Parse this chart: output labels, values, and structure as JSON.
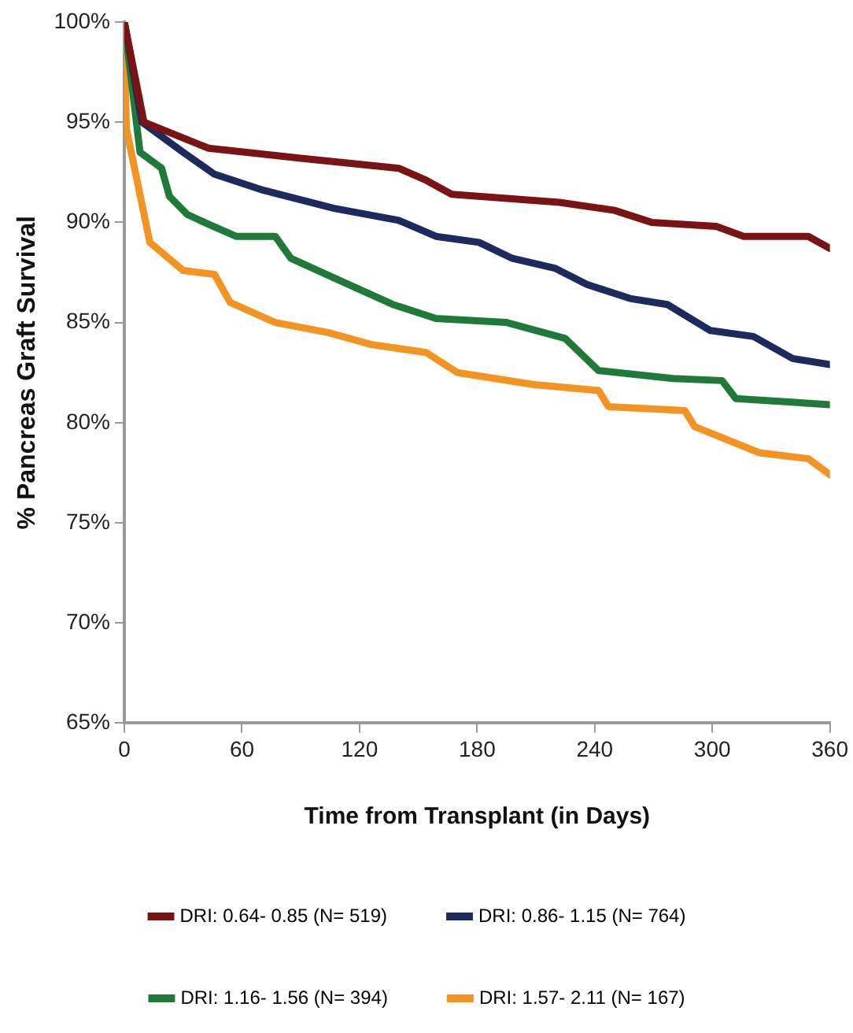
{
  "chart_data": {
    "type": "line",
    "xlabel": "Time from Transplant (in Days)",
    "ylabel": "% Pancreas Graft Survival",
    "xlim": [
      0,
      360
    ],
    "xticks": [
      0,
      60,
      120,
      180,
      240,
      300,
      360
    ],
    "ylim": [
      65,
      100
    ],
    "yticks": [
      {
        "value": 65,
        "label": "65%"
      },
      {
        "value": 70,
        "label": "70%"
      },
      {
        "value": 75,
        "label": "75%"
      },
      {
        "value": 80,
        "label": "80%"
      },
      {
        "value": 85,
        "label": "85%"
      },
      {
        "value": 90,
        "label": "90%"
      },
      {
        "value": 95,
        "label": "95%"
      },
      {
        "value": 100,
        "label": "100%"
      }
    ],
    "grid": false,
    "legend": "bottom",
    "marker": "none",
    "line_style": "solid",
    "series": [
      {
        "name": "DRI: 0.64- 0.85 (N= 519)",
        "color": "#7a1414",
        "x": [
          0,
          10,
          43,
          90,
          140,
          154,
          167,
          222,
          250,
          269,
          302,
          316,
          349,
          360
        ],
        "values": [
          100,
          95.0,
          93.7,
          93.2,
          92.7,
          92.1,
          91.4,
          91.0,
          90.6,
          90.0,
          89.8,
          89.3,
          89.3,
          88.7
        ]
      },
      {
        "name": "DRI: 0.86- 1.15 (N= 764)",
        "color": "#1c2a5e",
        "x": [
          0,
          9,
          30,
          46,
          71,
          107,
          140,
          159,
          181,
          198,
          220,
          236,
          258,
          277,
          299,
          321,
          341,
          360
        ],
        "values": [
          100,
          95.0,
          93.5,
          92.4,
          91.6,
          90.7,
          90.1,
          89.3,
          89.0,
          88.2,
          87.7,
          86.9,
          86.2,
          85.9,
          84.6,
          84.3,
          83.2,
          82.9
        ]
      },
      {
        "name": "DRI: 1.16- 1.56 (N= 394)",
        "color": "#1f7a3a",
        "x": [
          0,
          8,
          19,
          23,
          32,
          43,
          57,
          77,
          85,
          112,
          137,
          159,
          195,
          225,
          242,
          280,
          305,
          312,
          360
        ],
        "values": [
          100,
          93.5,
          92.7,
          91.3,
          90.4,
          89.9,
          89.3,
          89.3,
          88.2,
          87.0,
          85.9,
          85.2,
          85.0,
          84.2,
          82.6,
          82.2,
          82.1,
          81.2,
          80.9
        ]
      },
      {
        "name": "DRI: 1.57- 2.11 (N= 167)",
        "color": "#f39322",
        "x": [
          0,
          1,
          13,
          30,
          46,
          54,
          77,
          104,
          126,
          154,
          170,
          209,
          242,
          247,
          286,
          291,
          324,
          349,
          360
        ],
        "values": [
          100,
          94.7,
          89.0,
          87.6,
          87.4,
          86.0,
          85.0,
          84.5,
          83.9,
          83.5,
          82.5,
          81.9,
          81.6,
          80.8,
          80.6,
          79.8,
          78.5,
          78.2,
          77.4
        ]
      }
    ]
  }
}
